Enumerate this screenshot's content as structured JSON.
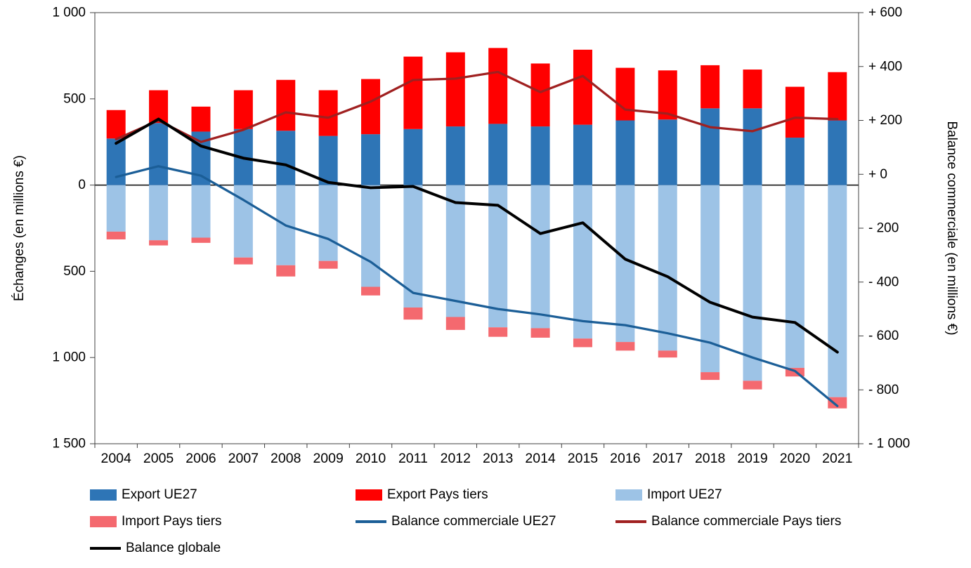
{
  "chart_data": {
    "type": "bar",
    "subtype": "stacked-bar-with-lines",
    "title": "",
    "categories": [
      "2004",
      "2005",
      "2006",
      "2007",
      "2008",
      "2009",
      "2010",
      "2011",
      "2012",
      "2013",
      "2014",
      "2015",
      "2016",
      "2017",
      "2018",
      "2019",
      "2020",
      "2021"
    ],
    "bar_series": [
      {
        "name": "Export UE27",
        "stack": "export",
        "direction": "up",
        "color": "#2E75B6",
        "values": [
          270,
          360,
          310,
          325,
          315,
          285,
          295,
          325,
          340,
          355,
          340,
          350,
          375,
          380,
          445,
          445,
          275,
          375
        ]
      },
      {
        "name": "Export Pays tiers",
        "stack": "export",
        "direction": "up",
        "color": "#FF0000",
        "values": [
          165,
          190,
          145,
          225,
          295,
          265,
          320,
          420,
          430,
          440,
          365,
          435,
          305,
          285,
          250,
          225,
          295,
          280
        ]
      },
      {
        "name": "Import UE27",
        "stack": "import",
        "direction": "down",
        "color": "#9DC3E6",
        "values": [
          270,
          320,
          305,
          420,
          465,
          440,
          590,
          710,
          765,
          825,
          830,
          890,
          910,
          960,
          1085,
          1135,
          1060,
          1230
        ]
      },
      {
        "name": "Import Pays tiers",
        "stack": "import",
        "direction": "down",
        "color": "#F4696F",
        "values": [
          45,
          30,
          30,
          40,
          65,
          45,
          50,
          70,
          75,
          55,
          55,
          50,
          50,
          40,
          45,
          50,
          50,
          65
        ]
      }
    ],
    "line_series": [
      {
        "name": "Balance commerciale UE27",
        "axis": "right",
        "color": "#1B5E97",
        "values": [
          -10,
          30,
          -5,
          -95,
          -190,
          -240,
          -325,
          -440,
          -470,
          -500,
          -520,
          -545,
          -560,
          -590,
          -625,
          -680,
          -730,
          -860
        ]
      },
      {
        "name": "Balance commerciale Pays tiers",
        "axis": "right",
        "color": "#A02020",
        "values": [
          130,
          200,
          120,
          165,
          230,
          210,
          270,
          350,
          355,
          380,
          305,
          365,
          240,
          225,
          175,
          160,
          210,
          205
        ]
      },
      {
        "name": "Balance globale",
        "axis": "right",
        "color": "#000000",
        "values": [
          115,
          205,
          105,
          60,
          35,
          -30,
          -50,
          -45,
          -105,
          -115,
          -220,
          -180,
          -315,
          -380,
          -475,
          -530,
          -550,
          -660
        ]
      }
    ],
    "left_axis": {
      "title": "Échanges (en millions €)",
      "min": -1500,
      "max": 1000,
      "ticks": [
        {
          "value": 1000,
          "label": "1 000"
        },
        {
          "value": 500,
          "label": "500"
        },
        {
          "value": 0,
          "label": "0"
        },
        {
          "value": -500,
          "label": "500"
        },
        {
          "value": -1000,
          "label": "1 000"
        },
        {
          "value": -1500,
          "label": "1 500"
        }
      ]
    },
    "right_axis": {
      "title": "Balance commerciale (en millions €)",
      "min": -1000,
      "max": 600,
      "ticks": [
        {
          "value": 600,
          "label": "+ 600"
        },
        {
          "value": 400,
          "label": "+ 400"
        },
        {
          "value": 200,
          "label": "+ 200"
        },
        {
          "value": 0,
          "label": "+ 0"
        },
        {
          "value": -200,
          "label": "- 200"
        },
        {
          "value": -400,
          "label": "- 400"
        },
        {
          "value": -600,
          "label": "- 600"
        },
        {
          "value": -800,
          "label": "- 800"
        },
        {
          "value": -1000,
          "label": "- 1 000"
        }
      ]
    },
    "grid": false,
    "legend_position": "bottom"
  },
  "legend": {
    "items": [
      {
        "label": "Export UE27",
        "swatch": "bar",
        "color": "#2E75B6"
      },
      {
        "label": "Export Pays tiers",
        "swatch": "bar",
        "color": "#FF0000"
      },
      {
        "label": "Import UE27",
        "swatch": "bar",
        "color": "#9DC3E6"
      },
      {
        "label": "Import Pays tiers",
        "swatch": "bar",
        "color": "#F4696F"
      },
      {
        "label": "Balance commerciale UE27",
        "swatch": "line",
        "color": "#1B5E97"
      },
      {
        "label": "Balance commerciale Pays tiers",
        "swatch": "line",
        "color": "#A02020"
      },
      {
        "label": "Balance globale",
        "swatch": "line",
        "color": "#000000"
      }
    ]
  }
}
